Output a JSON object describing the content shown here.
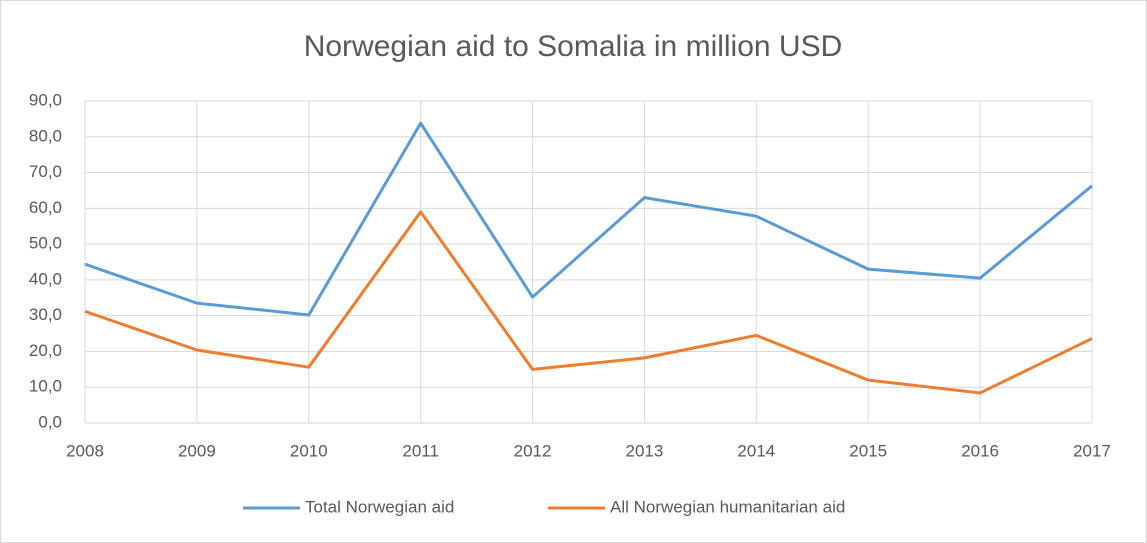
{
  "chart_data": {
    "type": "line",
    "title": "Norwegian aid to Somalia in million USD",
    "x": [
      2008,
      2009,
      2010,
      2011,
      2012,
      2013,
      2014,
      2015,
      2016,
      2017
    ],
    "xlim": [
      2008,
      2017
    ],
    "xticks": [
      2008,
      2009,
      2010,
      2011,
      2012,
      2013,
      2014,
      2015,
      2016,
      2017
    ],
    "series": [
      {
        "name": "Total Norwegian aid",
        "color": "#5b9bd5",
        "values": [
          44.4,
          33.5,
          30.2,
          83.8,
          35.2,
          63.0,
          57.8,
          43.0,
          40.5,
          66.3
        ]
      },
      {
        "name": "All Norwegian humanitarian aid",
        "color": "#ed7d31",
        "values": [
          31.2,
          20.4,
          15.6,
          59.0,
          15.0,
          18.2,
          24.5,
          12.0,
          8.4,
          23.6
        ]
      }
    ],
    "ylim": [
      0,
      90
    ],
    "yticks": [
      {
        "value": 0,
        "label": "0,0"
      },
      {
        "value": 10,
        "label": "10,0"
      },
      {
        "value": 20,
        "label": "20,0"
      },
      {
        "value": 30,
        "label": "30,0"
      },
      {
        "value": 40,
        "label": "40,0"
      },
      {
        "value": 50,
        "label": "50,0"
      },
      {
        "value": 60,
        "label": "60,0"
      },
      {
        "value": 70,
        "label": "70,0"
      },
      {
        "value": 80,
        "label": "80,0"
      },
      {
        "value": 90,
        "label": "90,0"
      }
    ],
    "grid": true,
    "legend": "bottom"
  }
}
